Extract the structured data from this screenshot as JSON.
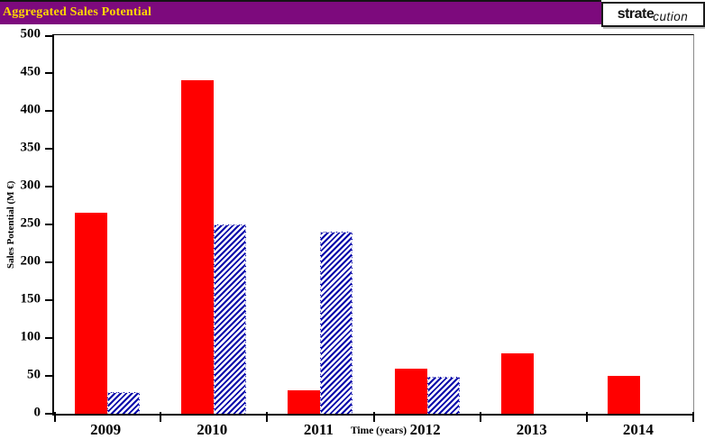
{
  "header": {
    "title": "Aggregated Sales Potential",
    "bar_color": "#7d0a7d",
    "title_color": "#ffd700"
  },
  "logo": {
    "text_bold": "strate",
    "text_italic": "cution"
  },
  "chart_data": {
    "type": "bar",
    "title": "Aggregated Sales Potential",
    "categories": [
      "2009",
      "2010",
      "2011",
      "2012",
      "2013",
      "2014"
    ],
    "series": [
      {
        "name": "red-solid",
        "color": "#ff0000",
        "style": "solid",
        "values": [
          265,
          440,
          31,
          60,
          80,
          50
        ]
      },
      {
        "name": "blue-hatched",
        "color": "#0000aa",
        "style": "diagonal-hatch",
        "values": [
          28,
          250,
          240,
          49,
          0,
          0
        ]
      }
    ],
    "xlabel": "Time (years)",
    "ylabel": "Sales Potential (M €)",
    "ylim": [
      0,
      500
    ],
    "yticks": [
      0,
      50,
      100,
      150,
      200,
      250,
      300,
      350,
      400,
      450,
      500
    ],
    "grid": false,
    "legend": false
  }
}
